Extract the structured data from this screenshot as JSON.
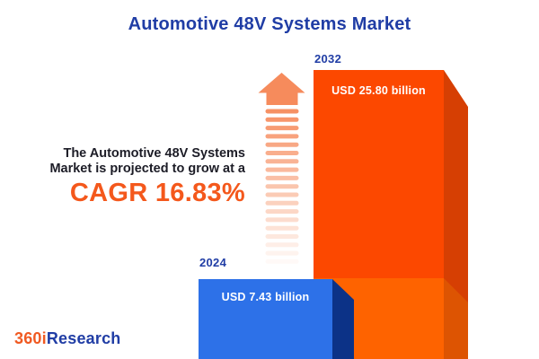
{
  "title": "Automotive 48V Systems Market",
  "headline": {
    "line1": "The Automotive 48V Systems",
    "line2": "Market is projected to grow at a",
    "cagr": "CAGR 16.83%"
  },
  "chart_data": {
    "type": "bar",
    "title": "Automotive 48V Systems Market",
    "categories": [
      "2024",
      "2032"
    ],
    "values": [
      7.43,
      25.8
    ],
    "value_labels": [
      "USD 7.43 billion",
      "USD 25.80 billion"
    ],
    "unit": "USD billion",
    "growth_annotation": "CAGR 16.83%",
    "cagr_percent": 16.83,
    "legend": "none",
    "grid": false,
    "bar_colors": [
      "#2D71E8",
      "#FC4800"
    ]
  },
  "bars": {
    "b2024": {
      "year": "2024",
      "value_label": "USD 7.43 billion"
    },
    "b2032": {
      "year": "2032",
      "value_label": "USD 25.80 billion"
    }
  },
  "colors": {
    "title_blue": "#203DA5",
    "desc_text": "#1C1C26",
    "cagr_orange": "#F4581C",
    "bar2024_front": "#2D71E8",
    "bar2024_side": "#0C3287",
    "bar2032_front_upper": "#FC4800",
    "bar2032_front_lower": "#FE6300",
    "bar2032_side_upper": "#D63F03",
    "bar2032_side_lower": "#DD5402",
    "arrow": "#F68B5C",
    "value_text": "#FFFFFF",
    "logo_orange": "#F05A22",
    "logo_blue": "#203DA5"
  },
  "logo": {
    "prefix": "360i",
    "suffix": "Research"
  }
}
